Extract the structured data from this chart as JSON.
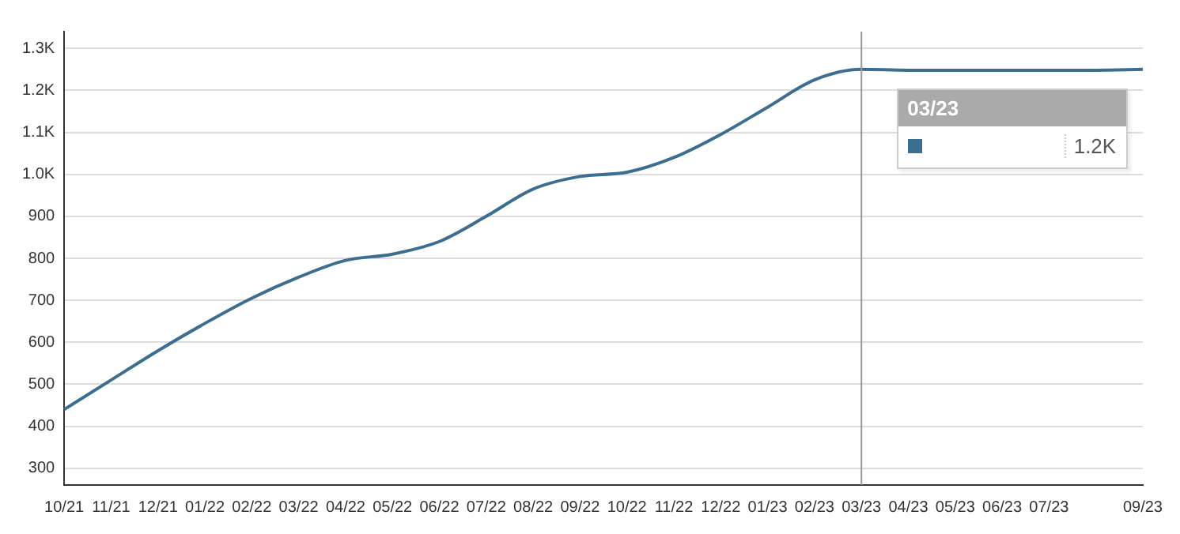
{
  "chart_data": {
    "type": "line",
    "categories": [
      "10/21",
      "11/21",
      "12/21",
      "01/22",
      "02/22",
      "03/22",
      "04/22",
      "05/22",
      "06/22",
      "07/22",
      "08/22",
      "09/22",
      "10/22",
      "11/22",
      "12/22",
      "01/23",
      "02/23",
      "03/23",
      "04/23",
      "05/23",
      "06/23",
      "07/23",
      null,
      "09/23"
    ],
    "series": [
      {
        "color": "#3d6e8f",
        "values": [
          440,
          510,
          580,
          645,
          705,
          755,
          795,
          810,
          840,
          900,
          965,
          995,
          1005,
          1040,
          1095,
          1160,
          1225,
          1250,
          1248,
          1248,
          1248,
          1248,
          1248,
          1250
        ]
      }
    ],
    "ylim": [
      260,
      1340
    ],
    "yticks": [
      300,
      400,
      500,
      600,
      700,
      800,
      900,
      {
        "value": 1000,
        "label": "1.0K"
      },
      {
        "value": 1100,
        "label": "1.1K"
      },
      {
        "value": 1200,
        "label": "1.2K"
      },
      {
        "value": 1300,
        "label": "1.3K"
      }
    ],
    "grid": "y",
    "legend": false,
    "marker": "none",
    "line_style": "solid",
    "ref_lines": [
      {
        "axis": "x",
        "value": "03/23",
        "color": "#999999"
      }
    ],
    "annotations": [
      "03/23",
      "1.2K"
    ]
  }
}
